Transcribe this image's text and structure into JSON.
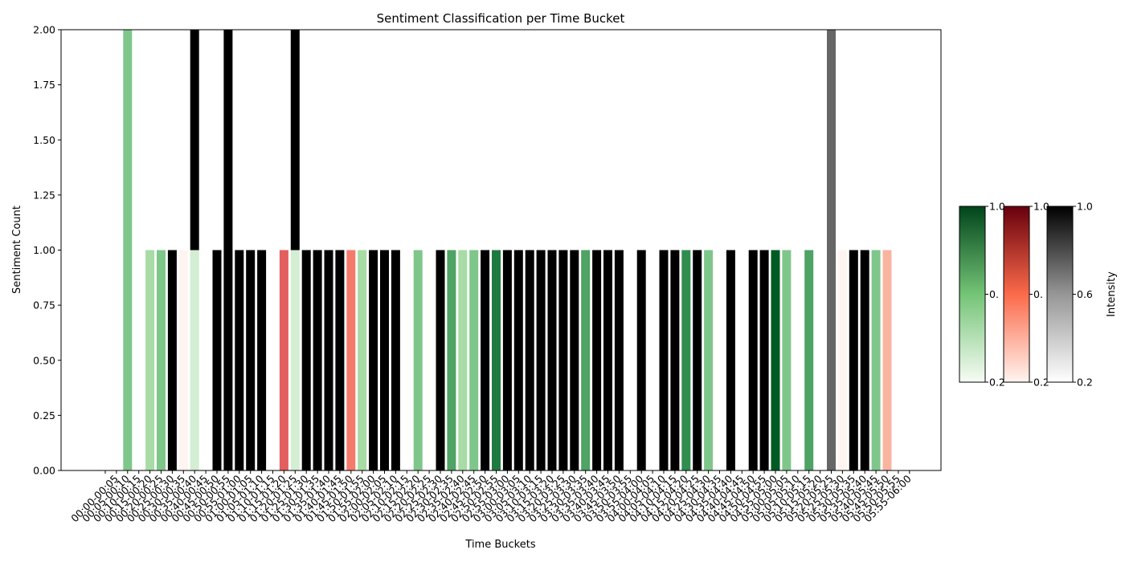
{
  "chart_data": {
    "type": "bar",
    "title": "Sentiment Classification per Time Bucket",
    "xlabel": "Time Buckets",
    "ylabel": "Sentiment Count",
    "ylim": [
      0,
      2
    ],
    "y_ticks": [
      "0.00",
      "0.25",
      "0.50",
      "0.75",
      "1.00",
      "1.25",
      "1.50",
      "1.75",
      "2.00"
    ],
    "grid": false,
    "categories": [
      "",
      "00:00-00:05",
      "00:05-00:10",
      "00:10-00:15",
      "00:15-00:20",
      "00:20-00:25",
      "00:25-00:30",
      "00:30-00:35",
      "00:35-00:40",
      "00:40-00:45",
      "00:45-00:50",
      "00:50-00:55",
      "00:55-01:00",
      "01:00-01:05",
      "01:05-01:10",
      "01:10-01:15",
      "01:15-01:20",
      "01:20-01:25",
      "01:25-01:30",
      "01:30-01:35",
      "01:35-01:40",
      "01:40-01:45",
      "01:45-01:50",
      "01:50-01:55",
      "01:55-02:00",
      "02:00-02:05",
      "02:05-02:10",
      "02:10-02:15",
      "02:15-02:20",
      "02:20-02:25",
      "02:25-02:30",
      "02:30-02:35",
      "02:35-02:40",
      "02:40-02:45",
      "02:45-02:50",
      "02:50-02:55",
      "02:55-03:00",
      "03:00-03:05",
      "03:05-03:10",
      "03:10-03:15",
      "03:15-03:20",
      "03:20-03:25",
      "03:25-03:30",
      "03:30-03:35",
      "03:35-03:40",
      "03:40-03:45",
      "03:45-03:50",
      "03:50-03:55",
      "03:55-04:00",
      "04:00-04:05",
      "04:05-04:10",
      "04:10-04:15",
      "04:15-04:20",
      "04:20-04:25",
      "04:25-04:30",
      "04:30-04:35",
      "04:35-04:40",
      "04:40-04:45",
      "04:45-04:50",
      "04:50-04:55",
      "04:55-05:00",
      "05:00-05:05",
      "05:05-05:10",
      "05:10-05:15",
      "05:15-05:20",
      "05:20-05:25",
      "05:25-05:30",
      "05:30-05:35",
      "05:35-05:40",
      "05:40-05:45",
      "05:45-05:50",
      "05:50-05:55",
      "05:55-06:00"
    ],
    "bars": [
      {
        "i": 2,
        "segments": [
          {
            "value": 2,
            "color": "#7fc68a"
          }
        ]
      },
      {
        "i": 4,
        "segments": [
          {
            "value": 1,
            "color": "#a8dba6"
          }
        ]
      },
      {
        "i": 5,
        "segments": [
          {
            "value": 1,
            "color": "#7fc68a"
          }
        ]
      },
      {
        "i": 6,
        "segments": [
          {
            "value": 1,
            "color": "#000000"
          }
        ]
      },
      {
        "i": 7,
        "segments": [
          {
            "value": 1,
            "color": "#fff5f0"
          }
        ]
      },
      {
        "i": 8,
        "segments": [
          {
            "value": 1,
            "color": "#d3eed2"
          },
          {
            "value": 1,
            "color": "#000000"
          }
        ]
      },
      {
        "i": 10,
        "segments": [
          {
            "value": 1,
            "color": "#000000"
          }
        ]
      },
      {
        "i": 11,
        "segments": [
          {
            "value": 2,
            "color": "#000000"
          }
        ]
      },
      {
        "i": 12,
        "segments": [
          {
            "value": 1,
            "color": "#000000"
          }
        ]
      },
      {
        "i": 13,
        "segments": [
          {
            "value": 1,
            "color": "#000000"
          }
        ]
      },
      {
        "i": 14,
        "segments": [
          {
            "value": 1,
            "color": "#000000"
          }
        ]
      },
      {
        "i": 16,
        "segments": [
          {
            "value": 1,
            "color": "#e35e5e"
          }
        ]
      },
      {
        "i": 17,
        "segments": [
          {
            "value": 1,
            "color": "#d3eed2"
          },
          {
            "value": 1,
            "color": "#000000"
          }
        ]
      },
      {
        "i": 18,
        "segments": [
          {
            "value": 1,
            "color": "#000000"
          }
        ]
      },
      {
        "i": 19,
        "segments": [
          {
            "value": 1,
            "color": "#000000"
          }
        ]
      },
      {
        "i": 20,
        "segments": [
          {
            "value": 1,
            "color": "#000000"
          }
        ]
      },
      {
        "i": 21,
        "segments": [
          {
            "value": 1,
            "color": "#000000"
          }
        ]
      },
      {
        "i": 22,
        "segments": [
          {
            "value": 1,
            "color": "#f47b6c"
          }
        ]
      },
      {
        "i": 23,
        "segments": [
          {
            "value": 1,
            "color": "#a8dba6"
          }
        ]
      },
      {
        "i": 24,
        "segments": [
          {
            "value": 1,
            "color": "#000000"
          }
        ]
      },
      {
        "i": 25,
        "segments": [
          {
            "value": 1,
            "color": "#000000"
          }
        ]
      },
      {
        "i": 26,
        "segments": [
          {
            "value": 1,
            "color": "#000000"
          }
        ]
      },
      {
        "i": 28,
        "segments": [
          {
            "value": 1,
            "color": "#7fc68a"
          }
        ]
      },
      {
        "i": 30,
        "segments": [
          {
            "value": 1,
            "color": "#000000"
          }
        ]
      },
      {
        "i": 31,
        "segments": [
          {
            "value": 1,
            "color": "#4fa364"
          }
        ]
      },
      {
        "i": 32,
        "segments": [
          {
            "value": 1,
            "color": "#a8dba6"
          }
        ]
      },
      {
        "i": 33,
        "segments": [
          {
            "value": 1,
            "color": "#7fc68a"
          }
        ]
      },
      {
        "i": 34,
        "segments": [
          {
            "value": 1,
            "color": "#000000"
          }
        ]
      },
      {
        "i": 35,
        "segments": [
          {
            "value": 1,
            "color": "#1f7a3f"
          }
        ]
      },
      {
        "i": 36,
        "segments": [
          {
            "value": 1,
            "color": "#000000"
          }
        ]
      },
      {
        "i": 37,
        "segments": [
          {
            "value": 1,
            "color": "#000000"
          }
        ]
      },
      {
        "i": 38,
        "segments": [
          {
            "value": 1,
            "color": "#000000"
          }
        ]
      },
      {
        "i": 39,
        "segments": [
          {
            "value": 1,
            "color": "#000000"
          }
        ]
      },
      {
        "i": 40,
        "segments": [
          {
            "value": 1,
            "color": "#000000"
          }
        ]
      },
      {
        "i": 41,
        "segments": [
          {
            "value": 1,
            "color": "#000000"
          }
        ]
      },
      {
        "i": 42,
        "segments": [
          {
            "value": 1,
            "color": "#000000"
          }
        ]
      },
      {
        "i": 43,
        "segments": [
          {
            "value": 1,
            "color": "#4fa364"
          }
        ]
      },
      {
        "i": 44,
        "segments": [
          {
            "value": 1,
            "color": "#000000"
          }
        ]
      },
      {
        "i": 45,
        "segments": [
          {
            "value": 1,
            "color": "#000000"
          }
        ]
      },
      {
        "i": 46,
        "segments": [
          {
            "value": 1,
            "color": "#000000"
          }
        ]
      },
      {
        "i": 48,
        "segments": [
          {
            "value": 1,
            "color": "#000000"
          }
        ]
      },
      {
        "i": 50,
        "segments": [
          {
            "value": 1,
            "color": "#000000"
          }
        ]
      },
      {
        "i": 51,
        "segments": [
          {
            "value": 1,
            "color": "#000000"
          }
        ]
      },
      {
        "i": 52,
        "segments": [
          {
            "value": 1,
            "color": "#2f8d4e"
          }
        ]
      },
      {
        "i": 53,
        "segments": [
          {
            "value": 1,
            "color": "#000000"
          }
        ]
      },
      {
        "i": 54,
        "segments": [
          {
            "value": 1,
            "color": "#7fc68a"
          }
        ]
      },
      {
        "i": 56,
        "segments": [
          {
            "value": 1,
            "color": "#000000"
          }
        ]
      },
      {
        "i": 58,
        "segments": [
          {
            "value": 1,
            "color": "#000000"
          }
        ]
      },
      {
        "i": 59,
        "segments": [
          {
            "value": 1,
            "color": "#000000"
          }
        ]
      },
      {
        "i": 60,
        "segments": [
          {
            "value": 1,
            "color": "#005a24"
          }
        ]
      },
      {
        "i": 61,
        "segments": [
          {
            "value": 1,
            "color": "#7fc68a"
          }
        ]
      },
      {
        "i": 63,
        "segments": [
          {
            "value": 1,
            "color": "#4fa364"
          }
        ]
      },
      {
        "i": 65,
        "segments": [
          {
            "value": 2,
            "color": "#666666"
          }
        ]
      },
      {
        "i": 66,
        "segments": [
          {
            "value": 1,
            "color": "#fff5f0"
          }
        ]
      },
      {
        "i": 67,
        "segments": [
          {
            "value": 1,
            "color": "#000000"
          }
        ]
      },
      {
        "i": 68,
        "segments": [
          {
            "value": 1,
            "color": "#000000"
          }
        ]
      },
      {
        "i": 69,
        "segments": [
          {
            "value": 1,
            "color": "#7fc68a"
          }
        ]
      },
      {
        "i": 70,
        "segments": [
          {
            "value": 1,
            "color": "#f9b4a0"
          }
        ]
      }
    ],
    "colorbars": [
      {
        "cmap": "Greens",
        "ticks": [
          "1.0",
          "0.",
          "0.2"
        ]
      },
      {
        "cmap": "Reds",
        "ticks": [
          "1.0",
          "0.",
          "0.2"
        ]
      },
      {
        "cmap": "Greys",
        "ticks": [
          "1.0",
          "0.6",
          "0.2"
        ],
        "label": "Intensity"
      }
    ]
  }
}
